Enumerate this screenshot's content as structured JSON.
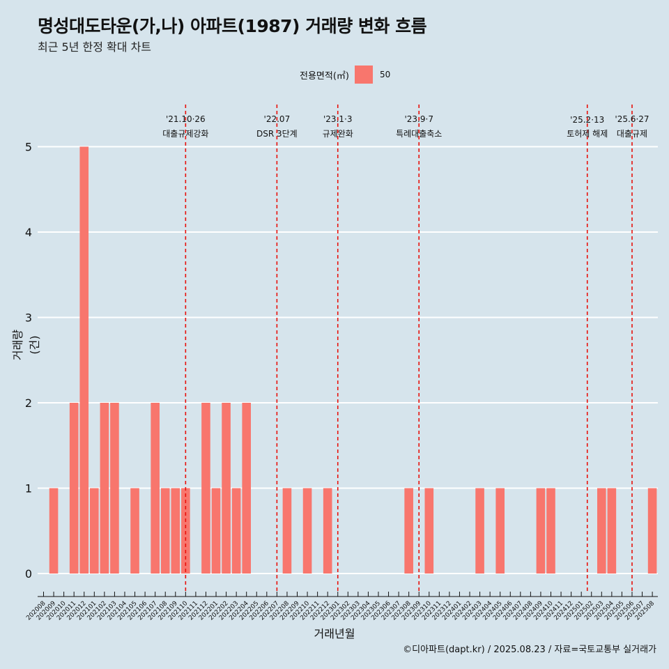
{
  "title": "명성대도타운(가,나) 아파트(1987) 거래량 변화 흐름",
  "subtitle": "최근 5년 한정 확대 차트",
  "legend": {
    "title": "전용면적(㎡)",
    "label": "50",
    "color": "#f8766d"
  },
  "caption": "©디아파트(dapt.kr) / 2025.08.23 / 자료=국토교통부 실거래가",
  "chart_data": {
    "type": "bar",
    "xlabel": "거래년월",
    "ylabel": "거래량(건)",
    "ylim": [
      0,
      5
    ],
    "yticks": [
      0,
      1,
      2,
      3,
      4,
      5
    ],
    "grid": true,
    "legend_position": "top",
    "categories": [
      "202008",
      "202009",
      "202010",
      "202011",
      "202012",
      "202101",
      "202102",
      "202103",
      "202104",
      "202105",
      "202106",
      "202107",
      "202108",
      "202109",
      "202110",
      "202111",
      "202112",
      "202201",
      "202202",
      "202203",
      "202204",
      "202205",
      "202206",
      "202207",
      "202208",
      "202209",
      "202210",
      "202211",
      "202212",
      "202301",
      "202302",
      "202303",
      "202304",
      "202305",
      "202306",
      "202307",
      "202308",
      "202309",
      "202310",
      "202311",
      "202312",
      "202401",
      "202402",
      "202403",
      "202404",
      "202405",
      "202406",
      "202407",
      "202408",
      "202409",
      "202410",
      "202411",
      "202412",
      "202501",
      "202502",
      "202503",
      "202504",
      "202505",
      "202506",
      "202507",
      "202508"
    ],
    "series": [
      {
        "name": "50",
        "color": "#f8766d",
        "values": [
          0,
          1,
          0,
          2,
          5,
          1,
          2,
          2,
          0,
          1,
          0,
          2,
          1,
          1,
          1,
          0,
          2,
          1,
          2,
          1,
          2,
          0,
          0,
          0,
          1,
          0,
          1,
          0,
          1,
          0,
          0,
          0,
          0,
          0,
          0,
          0,
          1,
          0,
          1,
          0,
          0,
          0,
          0,
          1,
          0,
          1,
          0,
          0,
          0,
          1,
          1,
          0,
          0,
          0,
          0,
          1,
          1,
          0,
          0,
          0,
          1
        ]
      }
    ],
    "annotations": [
      {
        "x": "202110",
        "date": "'21.10·26",
        "label": "대출규제강화"
      },
      {
        "x": "202207",
        "date": "'22.07",
        "label": "DSR 3단계"
      },
      {
        "x": "202301",
        "date": "'23.1·3",
        "label": "규제완화"
      },
      {
        "x": "202309",
        "date": "'23.9·7",
        "label": "특례대출축소"
      },
      {
        "x": "202502",
        "date": "'25.2·13",
        "label": "토허제 해제"
      },
      {
        "x": "202506",
        "date": "'25.6·27",
        "label": "대출규제"
      }
    ]
  }
}
